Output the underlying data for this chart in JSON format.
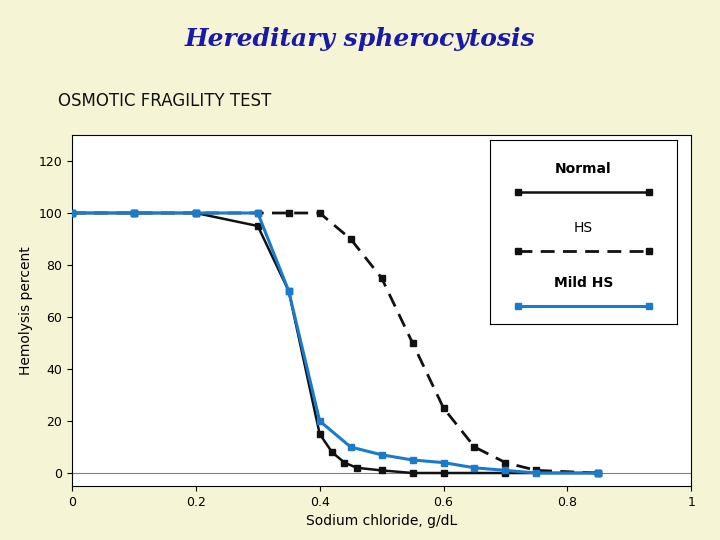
{
  "title": "Hereditary spherocytosis",
  "subtitle": "OSMOTIC FRAGILITY TEST",
  "xlabel": "Sodium chloride, g/dL",
  "ylabel": "Hemolysis percent",
  "xlim": [
    0,
    1.0
  ],
  "ylim": [
    -5,
    130
  ],
  "xticks": [
    0,
    0.2,
    0.4,
    0.6,
    0.8,
    1.0
  ],
  "yticks": [
    0,
    20,
    40,
    60,
    80,
    100,
    120
  ],
  "background_color": "#f5f5d5",
  "plot_bg_color": "#ffffff",
  "title_color": "#1a1aaa",
  "subtitle_color": "#111111",
  "normal_color": "#111111",
  "hs_color": "#111111",
  "mild_hs_color": "#1a7acc",
  "normal_x": [
    0.0,
    0.1,
    0.2,
    0.3,
    0.35,
    0.4,
    0.42,
    0.44,
    0.46,
    0.5,
    0.55,
    0.6,
    0.7,
    0.85
  ],
  "normal_y": [
    100,
    100,
    100,
    95,
    70,
    15,
    8,
    4,
    2,
    1,
    0,
    0,
    0,
    0
  ],
  "hs_x": [
    0.0,
    0.1,
    0.2,
    0.3,
    0.35,
    0.4,
    0.45,
    0.5,
    0.55,
    0.6,
    0.65,
    0.7,
    0.75,
    0.85
  ],
  "hs_y": [
    100,
    100,
    100,
    100,
    100,
    100,
    90,
    75,
    50,
    25,
    10,
    4,
    1,
    0
  ],
  "mild_hs_x": [
    0.0,
    0.1,
    0.2,
    0.3,
    0.35,
    0.4,
    0.45,
    0.5,
    0.55,
    0.6,
    0.65,
    0.7,
    0.75,
    0.85
  ],
  "mild_hs_y": [
    100,
    100,
    100,
    100,
    70,
    20,
    10,
    7,
    5,
    4,
    2,
    1,
    0,
    0
  ],
  "legend_labels": [
    "Normal",
    "HS",
    "Mild HS"
  ],
  "title_fontsize": 18,
  "subtitle_fontsize": 12,
  "axis_label_fontsize": 10,
  "tick_fontsize": 9,
  "legend_fontsize": 10
}
